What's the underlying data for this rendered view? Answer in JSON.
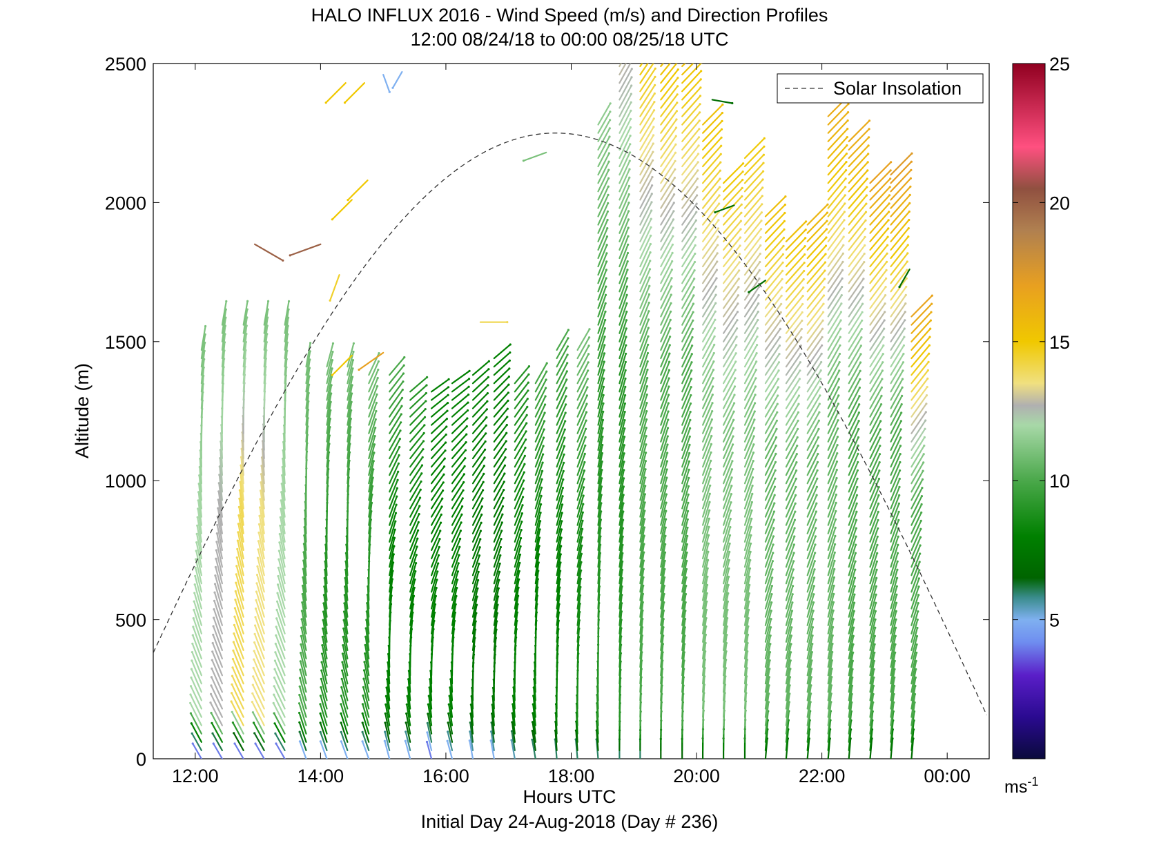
{
  "chart_data": {
    "type": "wind-barb-profile",
    "title_line1": "HALO INFLUX 2016 - Wind Speed (m/s) and Direction Profiles",
    "title_line2": "12:00 08/24/18 to 00:00 08/25/18  UTC",
    "xlabel": "Hours UTC",
    "xlabel_sub": "Initial Day 24-Aug-2018 (Day # 236)",
    "ylabel": "Altitude (m)",
    "xlim": [
      11.33,
      24.67
    ],
    "ylim": [
      0,
      2500
    ],
    "x_ticks": [
      {
        "value": 12,
        "label": "12:00"
      },
      {
        "value": 14,
        "label": "14:00"
      },
      {
        "value": 16,
        "label": "16:00"
      },
      {
        "value": 18,
        "label": "18:00"
      },
      {
        "value": 20,
        "label": "20:00"
      },
      {
        "value": 22,
        "label": "22:00"
      },
      {
        "value": 24,
        "label": "00:00"
      }
    ],
    "y_ticks": [
      0,
      500,
      1000,
      1500,
      2000,
      2500
    ],
    "legend": {
      "entries": [
        "Solar Insolation"
      ],
      "placement": "top-right",
      "line_style": "dashed",
      "line_color": "#000000"
    },
    "colorbar": {
      "range": [
        0,
        25
      ],
      "ticks": [
        5,
        10,
        15,
        20,
        25
      ],
      "unit": "ms",
      "unit_exponent": "-1",
      "stops": [
        {
          "v": 0,
          "c": "#0a0a3c"
        },
        {
          "v": 1.5,
          "c": "#2a0a90"
        },
        {
          "v": 3,
          "c": "#5a1ec8"
        },
        {
          "v": 4.2,
          "c": "#6f8ef0"
        },
        {
          "v": 5,
          "c": "#7fb0f0"
        },
        {
          "v": 5.8,
          "c": "#3a8c8c"
        },
        {
          "v": 6.5,
          "c": "#006400"
        },
        {
          "v": 8,
          "c": "#008000"
        },
        {
          "v": 10,
          "c": "#4aa84a"
        },
        {
          "v": 12,
          "c": "#a8d8a8"
        },
        {
          "v": 12.7,
          "c": "#b0b0b0"
        },
        {
          "v": 13.5,
          "c": "#f0e080"
        },
        {
          "v": 15,
          "c": "#f0c800"
        },
        {
          "v": 17,
          "c": "#e8a020"
        },
        {
          "v": 19,
          "c": "#b08050"
        },
        {
          "v": 20.5,
          "c": "#905040"
        },
        {
          "v": 22,
          "c": "#ff5080"
        },
        {
          "v": 25,
          "c": "#900020"
        }
      ]
    },
    "solar_insolation": {
      "peak_time_hours": 17.8,
      "peak_altitude_equiv": 2250,
      "zero_times_hours": [
        10.55,
        24.95
      ],
      "shape": "half-sine"
    },
    "profiles": [
      {
        "time": 12.1,
        "top": 1490,
        "dir_low": 330,
        "dir_high": 10,
        "spd_low": 4,
        "spd_mid": 12,
        "spd_high": 11
      },
      {
        "time": 12.43,
        "top": 1570,
        "dir_low": 330,
        "dir_high": 10,
        "spd_low": 4,
        "spd_mid": 12.7,
        "spd_high": 11
      },
      {
        "time": 12.77,
        "top": 1570,
        "dir_low": 330,
        "dir_high": 10,
        "spd_low": 4,
        "spd_mid": 14,
        "spd_high": 11
      },
      {
        "time": 13.1,
        "top": 1570,
        "dir_low": 330,
        "dir_high": 10,
        "spd_low": 4,
        "spd_mid": 13.5,
        "spd_high": 11
      },
      {
        "time": 13.43,
        "top": 1570,
        "dir_low": 330,
        "dir_high": 10,
        "spd_low": 4,
        "spd_mid": 12,
        "spd_high": 11
      },
      {
        "time": 13.77,
        "top": 1410,
        "dir_low": 340,
        "dir_high": 10,
        "spd_low": 5,
        "spd_mid": 10,
        "spd_high": 11
      },
      {
        "time": 14.1,
        "top": 1410,
        "dir_low": 340,
        "dir_high": 15,
        "spd_low": 5,
        "spd_mid": 9,
        "spd_high": 11
      },
      {
        "time": 14.43,
        "top": 1410,
        "dir_low": 340,
        "dir_high": 15,
        "spd_low": 5,
        "spd_mid": 9,
        "spd_high": 11
      },
      {
        "time": 14.77,
        "top": 1380,
        "dir_low": 340,
        "dir_high": 25,
        "spd_low": 5,
        "spd_mid": 9,
        "spd_high": 11
      },
      {
        "time": 15.1,
        "top": 1380,
        "dir_low": 345,
        "dir_high": 40,
        "spd_low": 5,
        "spd_mid": 8,
        "spd_high": 10
      },
      {
        "time": 15.43,
        "top": 1330,
        "dir_low": 345,
        "dir_high": 50,
        "spd_low": 5,
        "spd_mid": 8,
        "spd_high": 9
      },
      {
        "time": 15.77,
        "top": 1330,
        "dir_low": 345,
        "dir_high": 55,
        "spd_low": 4,
        "spd_mid": 8,
        "spd_high": 8
      },
      {
        "time": 16.1,
        "top": 1360,
        "dir_low": 345,
        "dir_high": 55,
        "spd_low": 5,
        "spd_mid": 8,
        "spd_high": 8
      },
      {
        "time": 16.43,
        "top": 1390,
        "dir_low": 350,
        "dir_high": 50,
        "spd_low": 5,
        "spd_mid": 7.5,
        "spd_high": 8
      },
      {
        "time": 16.77,
        "top": 1450,
        "dir_low": 350,
        "dir_high": 50,
        "spd_low": 5,
        "spd_mid": 7.5,
        "spd_high": 8
      },
      {
        "time": 17.1,
        "top": 1350,
        "dir_low": 350,
        "dir_high": 40,
        "spd_low": 5.5,
        "spd_mid": 8,
        "spd_high": 9
      },
      {
        "time": 17.43,
        "top": 1370,
        "dir_low": 350,
        "dir_high": 30,
        "spd_low": 6,
        "spd_mid": 8,
        "spd_high": 10
      },
      {
        "time": 17.77,
        "top": 1470,
        "dir_low": 355,
        "dir_high": 30,
        "spd_low": 6,
        "spd_mid": 8,
        "spd_high": 10
      },
      {
        "time": 18.1,
        "top": 1470,
        "dir_low": 355,
        "dir_high": 30,
        "spd_low": 6,
        "spd_mid": 8.5,
        "spd_high": 11
      },
      {
        "time": 18.43,
        "top": 2290,
        "dir_low": 355,
        "dir_high": 30,
        "spd_low": 6,
        "spd_mid": 9,
        "spd_high": 11.5
      },
      {
        "time": 18.77,
        "top": 2500,
        "dir_low": 0,
        "dir_high": 30,
        "spd_low": 6,
        "spd_mid": 9,
        "spd_high": 13
      },
      {
        "time": 19.1,
        "top": 2500,
        "dir_low": 0,
        "dir_high": 35,
        "spd_low": 6,
        "spd_mid": 10,
        "spd_high": 15
      },
      {
        "time": 19.43,
        "top": 2500,
        "dir_low": 0,
        "dir_high": 40,
        "spd_low": 6.5,
        "spd_mid": 10,
        "spd_high": 15.5
      },
      {
        "time": 19.77,
        "top": 2500,
        "dir_low": 0,
        "dir_high": 45,
        "spd_low": 6.5,
        "spd_mid": 10,
        "spd_high": 15.5
      },
      {
        "time": 20.1,
        "top": 2300,
        "dir_low": 0,
        "dir_high": 45,
        "spd_low": 7,
        "spd_mid": 11,
        "spd_high": 15.5
      },
      {
        "time": 20.43,
        "top": 2070,
        "dir_low": 0,
        "dir_high": 45,
        "spd_low": 7,
        "spd_mid": 11,
        "spd_high": 15
      },
      {
        "time": 20.77,
        "top": 2170,
        "dir_low": 0,
        "dir_high": 45,
        "spd_low": 7,
        "spd_mid": 11,
        "spd_high": 15
      },
      {
        "time": 21.1,
        "top": 1950,
        "dir_low": 5,
        "dir_high": 45,
        "spd_low": 7,
        "spd_mid": 10.5,
        "spd_high": 15.5
      },
      {
        "time": 21.43,
        "top": 1870,
        "dir_low": 5,
        "dir_high": 45,
        "spd_low": 7,
        "spd_mid": 10.5,
        "spd_high": 15.5
      },
      {
        "time": 21.77,
        "top": 1930,
        "dir_low": 5,
        "dir_high": 45,
        "spd_low": 7,
        "spd_mid": 10.5,
        "spd_high": 16
      },
      {
        "time": 22.1,
        "top": 2320,
        "dir_low": 5,
        "dir_high": 45,
        "spd_low": 7,
        "spd_mid": 10.5,
        "spd_high": 16.5
      },
      {
        "time": 22.43,
        "top": 2220,
        "dir_low": 5,
        "dir_high": 45,
        "spd_low": 7,
        "spd_mid": 10,
        "spd_high": 16.5
      },
      {
        "time": 22.77,
        "top": 2080,
        "dir_low": 5,
        "dir_high": 45,
        "spd_low": 7,
        "spd_mid": 10,
        "spd_high": 17
      },
      {
        "time": 23.1,
        "top": 2120,
        "dir_low": 5,
        "dir_high": 45,
        "spd_low": 7,
        "spd_mid": 10,
        "spd_high": 17.5
      },
      {
        "time": 23.43,
        "top": 1610,
        "dir_low": 5,
        "dir_high": 45,
        "spd_low": 7,
        "spd_mid": 10,
        "spd_high": 17
      }
    ],
    "isolated_barbs": [
      {
        "time": 12.95,
        "alt": 1850,
        "dir": 120,
        "spd": 20
      },
      {
        "time": 14.0,
        "alt": 1850,
        "dir": 250,
        "spd": 20
      },
      {
        "time": 14.3,
        "alt": 1740,
        "dir": 200,
        "spd": 14.5
      },
      {
        "time": 14.5,
        "alt": 2010,
        "dir": 225,
        "spd": 15
      },
      {
        "time": 14.75,
        "alt": 2080,
        "dir": 225,
        "spd": 15
      },
      {
        "time": 14.5,
        "alt": 1450,
        "dir": 225,
        "spd": 15
      },
      {
        "time": 15.0,
        "alt": 1460,
        "dir": 235,
        "spd": 17
      },
      {
        "time": 16.55,
        "alt": 1570,
        "dir": 90,
        "spd": 14
      },
      {
        "time": 17.6,
        "alt": 2180,
        "dir": 250,
        "spd": 11
      },
      {
        "time": 20.25,
        "alt": 2370,
        "dir": 100,
        "spd": 7
      },
      {
        "time": 20.6,
        "alt": 1990,
        "dir": 250,
        "spd": 7
      },
      {
        "time": 21.1,
        "alt": 1720,
        "dir": 235,
        "spd": 7
      },
      {
        "time": 23.4,
        "alt": 1760,
        "dir": 210,
        "spd": 7
      },
      {
        "time": 15.0,
        "alt": 2460,
        "dir": 160,
        "spd": 5
      },
      {
        "time": 15.3,
        "alt": 2470,
        "dir": 210,
        "spd": 5
      },
      {
        "time": 14.4,
        "alt": 2430,
        "dir": 225,
        "spd": 15
      },
      {
        "time": 14.7,
        "alt": 2430,
        "dir": 225,
        "spd": 15
      }
    ]
  }
}
